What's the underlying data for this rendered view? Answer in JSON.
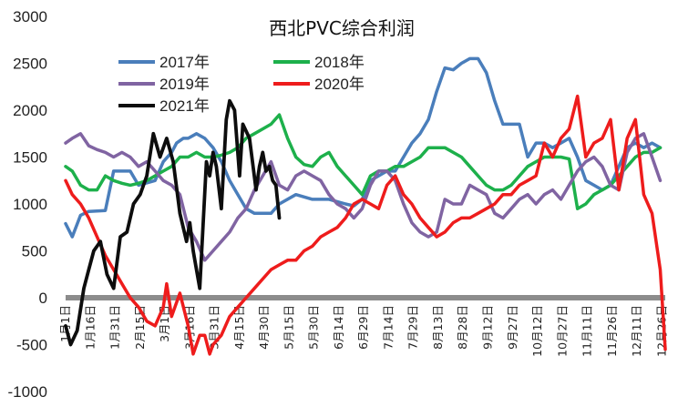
{
  "chart_data": {
    "type": "line",
    "title": "西北PVC综合利润",
    "ylim": [
      -1000,
      3000
    ],
    "yticks": [
      -1000,
      -500,
      0,
      500,
      1000,
      1500,
      2000,
      2500,
      3000
    ],
    "xlim": [
      1,
      363
    ],
    "xticks": [
      {
        "x": 1,
        "label": "1月1日"
      },
      {
        "x": 16,
        "label": "1月16日"
      },
      {
        "x": 31,
        "label": "1月31日"
      },
      {
        "x": 46,
        "label": "2月15日"
      },
      {
        "x": 61,
        "label": "3月1日"
      },
      {
        "x": 76,
        "label": "3月16日"
      },
      {
        "x": 91,
        "label": "3月31日"
      },
      {
        "x": 106,
        "label": "4月15日"
      },
      {
        "x": 121,
        "label": "4月30日"
      },
      {
        "x": 136,
        "label": "5月15日"
      },
      {
        "x": 151,
        "label": "5月30日"
      },
      {
        "x": 166,
        "label": "6月14日"
      },
      {
        "x": 181,
        "label": "6月29日"
      },
      {
        "x": 196,
        "label": "7月14日"
      },
      {
        "x": 211,
        "label": "7月29日"
      },
      {
        "x": 226,
        "label": "8月13日"
      },
      {
        "x": 241,
        "label": "8月28日"
      },
      {
        "x": 256,
        "label": "9月12日"
      },
      {
        "x": 271,
        "label": "9月27日"
      },
      {
        "x": 286,
        "label": "10月12日"
      },
      {
        "x": 301,
        "label": "10月27日"
      },
      {
        "x": 316,
        "label": "11月11日"
      },
      {
        "x": 331,
        "label": "11月26日"
      },
      {
        "x": 346,
        "label": "12月11日"
      },
      {
        "x": 361,
        "label": "12月26日"
      }
    ],
    "series": [
      {
        "name": "2017年",
        "color": "#4a7ebb",
        "x": [
          1,
          5,
          10,
          15,
          25,
          30,
          40,
          45,
          55,
          60,
          65,
          68,
          72,
          75,
          80,
          85,
          90,
          95,
          100,
          105,
          110,
          115,
          120,
          125,
          130,
          140,
          150,
          160,
          170,
          175,
          180,
          185,
          190,
          195,
          200,
          205,
          210,
          215,
          220,
          225,
          230,
          235,
          240,
          245,
          250,
          255,
          260,
          265,
          270,
          275,
          280,
          285,
          290,
          295,
          300,
          305,
          310,
          315,
          320,
          325,
          330,
          335,
          340,
          345,
          350,
          355,
          360
        ],
        "y": [
          790,
          650,
          880,
          920,
          930,
          1350,
          1350,
          1200,
          1250,
          1450,
          1550,
          1650,
          1700,
          1700,
          1750,
          1700,
          1600,
          1450,
          1250,
          1100,
          950,
          900,
          900,
          900,
          1000,
          1100,
          1050,
          1050,
          1000,
          980,
          1050,
          1250,
          1300,
          1350,
          1350,
          1500,
          1650,
          1750,
          1900,
          2200,
          2450,
          2430,
          2500,
          2550,
          2550,
          2400,
          2100,
          1850,
          1850,
          1850,
          1500,
          1650,
          1650,
          1600,
          1650,
          1700,
          1500,
          1250,
          1200,
          1150,
          1200,
          1400,
          1600,
          1650,
          1600,
          1650,
          1600
        ]
      },
      {
        "name": "2018年",
        "color": "#1db04b",
        "x": [
          1,
          5,
          10,
          15,
          20,
          25,
          30,
          35,
          40,
          45,
          50,
          55,
          60,
          65,
          70,
          75,
          80,
          85,
          90,
          95,
          100,
          105,
          110,
          115,
          120,
          125,
          130,
          135,
          140,
          145,
          150,
          155,
          160,
          165,
          170,
          175,
          180,
          185,
          190,
          195,
          200,
          205,
          210,
          215,
          220,
          225,
          230,
          235,
          240,
          245,
          250,
          255,
          260,
          265,
          270,
          275,
          280,
          285,
          290,
          295,
          300,
          305,
          310,
          315,
          320,
          325,
          330,
          335,
          340,
          345,
          350,
          355,
          360
        ],
        "y": [
          1400,
          1350,
          1200,
          1150,
          1150,
          1300,
          1250,
          1220,
          1200,
          1220,
          1250,
          1300,
          1350,
          1400,
          1500,
          1500,
          1550,
          1500,
          1500,
          1520,
          1550,
          1600,
          1700,
          1750,
          1800,
          1850,
          1950,
          1700,
          1500,
          1420,
          1400,
          1500,
          1550,
          1400,
          1300,
          1200,
          1100,
          1300,
          1350,
          1350,
          1400,
          1400,
          1450,
          1500,
          1600,
          1600,
          1600,
          1550,
          1500,
          1400,
          1300,
          1200,
          1150,
          1150,
          1200,
          1300,
          1400,
          1450,
          1500,
          1500,
          1500,
          1480,
          950,
          1000,
          1100,
          1150,
          1200,
          1300,
          1400,
          1500,
          1550,
          1550,
          1600
        ]
      },
      {
        "name": "2019年",
        "color": "#8064a2",
        "x": [
          1,
          5,
          10,
          15,
          20,
          25,
          30,
          35,
          40,
          45,
          50,
          55,
          60,
          65,
          70,
          75,
          80,
          85,
          90,
          95,
          100,
          105,
          110,
          115,
          120,
          125,
          130,
          135,
          140,
          145,
          150,
          155,
          160,
          165,
          170,
          175,
          180,
          185,
          190,
          195,
          200,
          205,
          210,
          215,
          220,
          225,
          230,
          235,
          240,
          245,
          250,
          255,
          260,
          265,
          270,
          275,
          280,
          285,
          290,
          295,
          300,
          305,
          310,
          315,
          320,
          325,
          330,
          335,
          340,
          345,
          350,
          355,
          360
        ],
        "y": [
          1650,
          1700,
          1750,
          1620,
          1580,
          1550,
          1500,
          1550,
          1500,
          1400,
          1450,
          1350,
          1250,
          1200,
          1100,
          750,
          600,
          400,
          500,
          600,
          700,
          850,
          950,
          1150,
          1300,
          1450,
          1200,
          1150,
          1300,
          1350,
          1300,
          1250,
          1100,
          1000,
          950,
          850,
          950,
          1200,
          1350,
          1350,
          1250,
          1000,
          800,
          700,
          650,
          700,
          1050,
          1000,
          1000,
          1200,
          1150,
          1100,
          900,
          850,
          950,
          1050,
          1100,
          1000,
          1100,
          1150,
          1050,
          1200,
          1350,
          1450,
          1500,
          1400,
          1200,
          1150,
          1550,
          1700,
          1750,
          1500,
          1250
        ]
      },
      {
        "name": "2020年",
        "color": "#ee1c1c",
        "x": [
          1,
          5,
          10,
          15,
          20,
          25,
          30,
          35,
          40,
          45,
          50,
          55,
          60,
          62,
          65,
          70,
          75,
          78,
          82,
          85,
          88,
          90,
          95,
          100,
          105,
          110,
          115,
          120,
          125,
          130,
          135,
          140,
          145,
          150,
          155,
          160,
          165,
          170,
          175,
          180,
          185,
          190,
          195,
          200,
          205,
          210,
          215,
          220,
          225,
          230,
          235,
          240,
          245,
          250,
          255,
          260,
          265,
          270,
          275,
          280,
          285,
          290,
          295,
          300,
          305,
          310,
          315,
          320,
          325,
          330,
          335,
          340,
          345,
          350,
          355,
          360,
          363
        ],
        "y": [
          1250,
          1100,
          1000,
          850,
          650,
          450,
          300,
          150,
          0,
          -100,
          -250,
          -300,
          -100,
          150,
          -200,
          50,
          -300,
          -600,
          -400,
          -400,
          -600,
          -500,
          -400,
          -200,
          -100,
          0,
          100,
          200,
          300,
          350,
          400,
          400,
          500,
          550,
          650,
          700,
          750,
          850,
          1000,
          1050,
          1000,
          950,
          1200,
          1300,
          1100,
          1000,
          850,
          750,
          650,
          700,
          800,
          850,
          850,
          900,
          950,
          1000,
          1100,
          1100,
          1200,
          1250,
          1300,
          1650,
          1500,
          1700,
          1800,
          2150,
          1500,
          1650,
          1700,
          1900,
          1150,
          1700,
          1900,
          1100,
          900,
          300,
          -550
        ]
      },
      {
        "name": "2021年",
        "color": "#0d0d0d",
        "x": [
          1,
          4,
          8,
          12,
          15,
          18,
          22,
          26,
          30,
          34,
          38,
          42,
          46,
          50,
          54,
          58,
          62,
          66,
          70,
          74,
          76,
          78,
          82,
          86,
          88,
          90,
          92,
          95,
          98,
          100,
          103,
          106,
          108,
          112,
          116,
          118,
          120,
          122,
          124,
          126,
          128,
          130
        ],
        "y": [
          -300,
          -500,
          -350,
          100,
          300,
          500,
          600,
          250,
          100,
          650,
          700,
          1000,
          1100,
          1300,
          1750,
          1500,
          1700,
          1450,
          900,
          600,
          800,
          500,
          100,
          1450,
          1300,
          1550,
          1400,
          950,
          1900,
          2100,
          2000,
          1300,
          1850,
          1700,
          1150,
          1400,
          1550,
          1350,
          1400,
          1250,
          1200,
          850
        ]
      }
    ]
  }
}
